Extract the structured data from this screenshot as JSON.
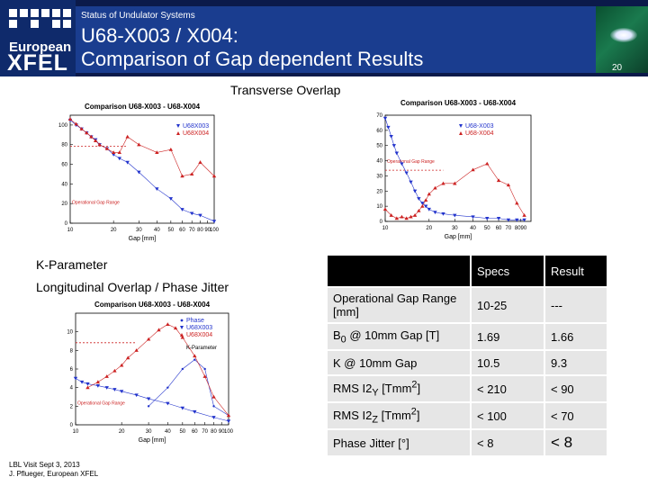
{
  "header": {
    "kicker": "Status of Undulator Systems",
    "title_line1": "U68-X003 / X004:",
    "title_line2": "Comparison of Gap dependent Results",
    "logo_line1": "European",
    "logo_line2": "XFEL",
    "page_number": "20"
  },
  "sections": {
    "transverse": "Transverse Overlap",
    "kparam": "K-Parameter",
    "longitudinal": "Longitudinal Overlap / Phase Jitter"
  },
  "chart_data": [
    {
      "type": "scatter",
      "title": "Comparison U68-X003 - U68-X004",
      "xlabel": "Gap [mm]",
      "x_scale": "log",
      "xlim": [
        10,
        100
      ],
      "x_tick_labels": [
        "10",
        "20",
        "30",
        "40",
        "50",
        "60",
        "70",
        "80",
        "90",
        "100"
      ],
      "ylim": [
        0,
        110
      ],
      "y_tick_labels": [
        "0",
        "20",
        "40",
        "60",
        "80",
        "100"
      ],
      "annotation": "Operational Gap Range",
      "series": [
        {
          "name": "U68X003",
          "color": "#2233cc",
          "marker": "triangle-down",
          "x": [
            10,
            11,
            12,
            13,
            14,
            15,
            16,
            18,
            20,
            22,
            25,
            30,
            40,
            50,
            60,
            70,
            80,
            100
          ],
          "y": [
            105,
            100,
            96,
            92,
            88,
            85,
            80,
            76,
            70,
            66,
            62,
            52,
            35,
            25,
            14,
            10,
            8,
            2
          ]
        },
        {
          "name": "U68X004",
          "color": "#cc2222",
          "marker": "triangle-up",
          "x": [
            10,
            11,
            12,
            13,
            14,
            15,
            16,
            18,
            20,
            22,
            25,
            30,
            40,
            50,
            60,
            70,
            80,
            100
          ],
          "y": [
            106,
            101,
            96,
            92,
            88,
            84,
            80,
            76,
            72,
            72,
            88,
            80,
            72,
            75,
            48,
            50,
            62,
            48
          ]
        }
      ]
    },
    {
      "type": "scatter",
      "title": "Comparison U68-X003 - U68-X004",
      "xlabel": "Gap [mm]",
      "x_scale": "log",
      "xlim": [
        10,
        100
      ],
      "x_tick_labels": [
        "10",
        "20",
        "30",
        "40",
        "50",
        "60",
        "70",
        "8090"
      ],
      "ylim": [
        0,
        70
      ],
      "y_tick_labels": [
        "0",
        "10",
        "20",
        "30",
        "40",
        "50",
        "60",
        "70"
      ],
      "annotation": "Operational Gap Range",
      "series": [
        {
          "name": "U68-X003",
          "color": "#2233cc",
          "marker": "triangle-down",
          "x": [
            10,
            10.5,
            11,
            11.5,
            12,
            13,
            14,
            15,
            16,
            17,
            18,
            19,
            20,
            22,
            25,
            30,
            40,
            50,
            60,
            70,
            80,
            90
          ],
          "y": [
            68,
            62,
            56,
            50,
            45,
            38,
            32,
            26,
            20,
            15,
            12,
            10,
            8,
            6,
            5,
            4,
            3,
            2,
            2,
            1,
            1,
            1
          ]
        },
        {
          "name": "U68-X004",
          "color": "#cc2222",
          "marker": "triangle-up",
          "x": [
            10,
            11,
            12,
            13,
            14,
            15,
            16,
            17,
            18,
            19,
            20,
            22,
            25,
            30,
            40,
            50,
            60,
            70,
            80,
            90
          ],
          "y": [
            8,
            4,
            2,
            3,
            2,
            3,
            4,
            7,
            10,
            14,
            18,
            22,
            25,
            25,
            34,
            38,
            27,
            24,
            12,
            4
          ]
        }
      ]
    },
    {
      "type": "scatter",
      "title": "Comparison U68-X003 - U68-X004",
      "xlabel": "Gap [mm]",
      "x_scale": "log",
      "xlim": [
        10,
        100
      ],
      "x_tick_labels": [
        "10",
        "20",
        "30",
        "40",
        "50",
        "60",
        "70",
        "80",
        "90",
        "100"
      ],
      "ylim": [
        0,
        12
      ],
      "y_tick_labels": [
        "0",
        "2",
        "4",
        "6",
        "8",
        "10"
      ],
      "annotation": "Operational Gap Range",
      "series": [
        {
          "name": "Phase",
          "color": "#2233cc",
          "marker": "dot",
          "x": [
            30,
            40,
            50,
            60,
            70,
            80,
            100
          ],
          "y": [
            2,
            4,
            6,
            7,
            6,
            2,
            1
          ]
        },
        {
          "name": "U68X003",
          "color": "#2233cc",
          "marker": "triangle-down",
          "x": [
            10,
            11,
            12,
            14,
            16,
            18,
            20,
            25,
            30,
            40,
            50,
            60,
            80,
            100
          ],
          "y": [
            5,
            4.6,
            4.4,
            4.2,
            4.0,
            3.8,
            3.6,
            3.2,
            2.8,
            2.3,
            1.8,
            1.4,
            0.8,
            0.4
          ]
        },
        {
          "name": "U68X004",
          "color": "#cc2222",
          "marker": "triangle-up",
          "x": [
            12,
            14,
            16,
            18,
            20,
            22,
            25,
            30,
            35,
            40,
            45,
            50,
            60,
            70,
            80,
            100
          ],
          "y": [
            4,
            4.6,
            5.2,
            5.8,
            6.4,
            7.2,
            8.0,
            9.2,
            10.2,
            10.8,
            10.4,
            9.4,
            7.4,
            5.2,
            3.0,
            1.0
          ]
        }
      ],
      "legend_entries": [
        "K-Parameter",
        "U68X003",
        "U68X004"
      ]
    }
  ],
  "table": {
    "headers": [
      "",
      "Specs",
      "Result"
    ],
    "rows": [
      {
        "label": "Operational Gap Range [mm]",
        "spec": "10-25",
        "result": "---"
      },
      {
        "label": "B0 @ 10mm Gap [T]",
        "spec": "1.69",
        "result": "1.66"
      },
      {
        "label": "K @ 10mm Gap",
        "spec": "10.5",
        "result": "9.3"
      },
      {
        "label": "RMS I2Y [Tmm2]",
        "spec": "< 210",
        "result": "< 90"
      },
      {
        "label": "RMS I2Z [Tmm2]",
        "spec": "< 100",
        "result": "< 70"
      },
      {
        "label": "Phase Jitter [°]",
        "spec": "< 8",
        "result": "< 8"
      }
    ]
  },
  "footer": {
    "line1": "LBL Visit Sept 3, 2013",
    "line2": "J. Pflueger, European XFEL"
  }
}
